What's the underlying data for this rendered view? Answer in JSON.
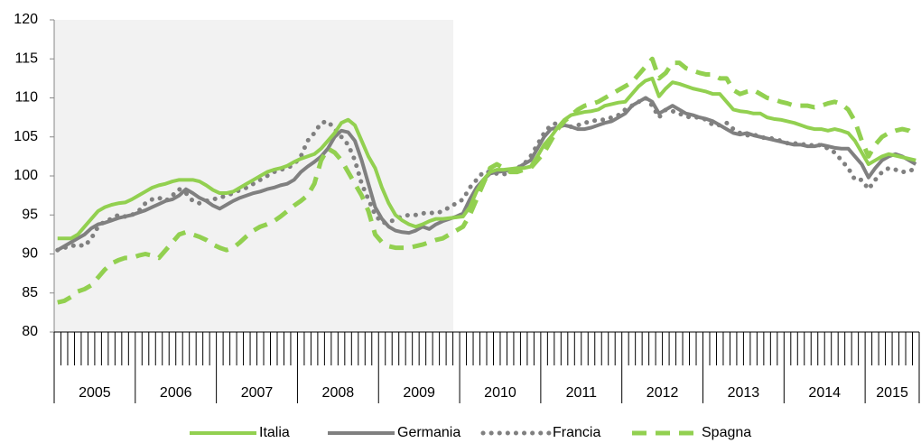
{
  "chart_data": {
    "type": "line",
    "categories": [
      "2005",
      null,
      null,
      null,
      null,
      null,
      null,
      null,
      null,
      null,
      null,
      null,
      "2006",
      null,
      null,
      null,
      null,
      null,
      null,
      null,
      null,
      null,
      null,
      null,
      "2007",
      null,
      null,
      null,
      null,
      null,
      null,
      null,
      null,
      null,
      null,
      null,
      "2008",
      null,
      null,
      null,
      null,
      null,
      null,
      null,
      null,
      null,
      null,
      null,
      "2009",
      null,
      null,
      null,
      null,
      null,
      null,
      null,
      null,
      null,
      null,
      null,
      "2010",
      null,
      null,
      null,
      null,
      null,
      null,
      null,
      null,
      null,
      null,
      null,
      "2011",
      null,
      null,
      null,
      null,
      null,
      null,
      null,
      null,
      null,
      null,
      null,
      "2012",
      null,
      null,
      null,
      null,
      null,
      null,
      null,
      null,
      null,
      null,
      null,
      "2013",
      null,
      null,
      null,
      null,
      null,
      null,
      null,
      null,
      null,
      null,
      null,
      "2014",
      null,
      null,
      null,
      null,
      null,
      null,
      null,
      null,
      null,
      null,
      null,
      "2015",
      null,
      null,
      null,
      null,
      null,
      null,
      null
    ],
    "series": [
      {
        "name": "Italia",
        "color": "#92d050",
        "style": "solid",
        "values": [
          92,
          92,
          92,
          92.5,
          93.5,
          94.5,
          95.5,
          96,
          96.3,
          96.5,
          96.6,
          97,
          97.5,
          98,
          98.5,
          98.8,
          99,
          99.3,
          99.5,
          99.5,
          99.5,
          99.3,
          98.8,
          98.2,
          97.8,
          97.8,
          98,
          98.5,
          99,
          99.5,
          100,
          100.5,
          100.8,
          101,
          101.3,
          101.8,
          102.2,
          102.5,
          102.8,
          103.5,
          104.5,
          105.5,
          106.8,
          107.2,
          106.5,
          104.5,
          102.5,
          101,
          98.5,
          96.5,
          95,
          94.3,
          93.8,
          93.5,
          93.8,
          94.2,
          94.5,
          94.5,
          94.6,
          94.7,
          94.8,
          96,
          98,
          99.5,
          100.5,
          100.8,
          100.8,
          100.9,
          101,
          101,
          101.2,
          102.5,
          104,
          105,
          106.2,
          107.2,
          107.8,
          108,
          108.2,
          108.3,
          108.5,
          109,
          109.2,
          109.4,
          109.5,
          110.5,
          111.5,
          112.2,
          112.5,
          110.2,
          111.2,
          112,
          111.8,
          111.5,
          111.2,
          111,
          110.8,
          110.5,
          110.5,
          109.5,
          108.5,
          108.3,
          108.2,
          108,
          108,
          107.5,
          107.3,
          107.2,
          107,
          106.8,
          106.5,
          106.2,
          106,
          106,
          105.8,
          106,
          105.8,
          105.5,
          104.5,
          103,
          101.5,
          102,
          102.5,
          102.8,
          102.6,
          102.4,
          102.2,
          102
        ]
      },
      {
        "name": "Germania",
        "color": "#808080",
        "style": "solid",
        "values": [
          90.5,
          91,
          91.5,
          92,
          92.5,
          93.3,
          93.8,
          94,
          94.3,
          94.6,
          94.8,
          95,
          95.3,
          95.6,
          96,
          96.4,
          96.8,
          97,
          97.5,
          98.3,
          97.8,
          97.2,
          96.8,
          96.2,
          95.8,
          96.3,
          96.8,
          97.2,
          97.5,
          97.8,
          98,
          98.3,
          98.5,
          98.8,
          99,
          99.5,
          100.5,
          101.2,
          101.8,
          102.5,
          103.5,
          105,
          105.8,
          105.6,
          104.5,
          102,
          99,
          96,
          94.5,
          93.5,
          93,
          92.8,
          92.7,
          93,
          93.5,
          93.2,
          93.8,
          94.2,
          94.5,
          94.8,
          95.2,
          97,
          98.5,
          99.5,
          100.3,
          100.5,
          100.6,
          100.8,
          101,
          101.5,
          102,
          103.5,
          105,
          106,
          106.2,
          106.5,
          106.3,
          106,
          106,
          106.2,
          106.5,
          106.8,
          107,
          107.5,
          108,
          109,
          109.5,
          110,
          109.5,
          108,
          108.5,
          109,
          108.5,
          108,
          107.8,
          107.5,
          107.3,
          107,
          106.5,
          106,
          105.5,
          105.3,
          105.5,
          105.2,
          105,
          104.8,
          104.6,
          104.4,
          104.2,
          104,
          104,
          103.8,
          103.8,
          104,
          103.8,
          103.6,
          103.5,
          103.5,
          102.5,
          101.5,
          99.8,
          101,
          102,
          102.5,
          102.8,
          102.5,
          102,
          101.5
        ]
      },
      {
        "name": "Francia",
        "color": "#808080",
        "style": "dotted",
        "values": [
          90.5,
          90.8,
          91,
          91.2,
          91,
          92,
          93.5,
          94.2,
          94.5,
          95,
          94.8,
          95,
          95.5,
          96.5,
          97,
          97.2,
          96.8,
          97.5,
          98.3,
          97.8,
          96.8,
          96.5,
          96.8,
          97,
          97.2,
          97.5,
          97.8,
          98.2,
          98.5,
          99,
          99.5,
          100,
          100.5,
          100.8,
          101,
          101.5,
          102.5,
          104.5,
          105.5,
          106.8,
          107,
          106,
          105,
          104,
          102,
          99,
          97,
          95,
          94,
          94,
          94.5,
          94.8,
          95,
          95,
          95.2,
          95.3,
          95.2,
          95.5,
          96,
          96.5,
          97,
          98.5,
          99.5,
          100.5,
          100.5,
          100.3,
          100.2,
          100.5,
          101,
          101.5,
          102.5,
          104,
          105.5,
          106.5,
          106.8,
          106.5,
          106.3,
          106.5,
          106.8,
          107,
          107.2,
          107.2,
          107.5,
          107.8,
          108.5,
          109,
          109.5,
          110,
          109,
          107.5,
          108.5,
          108.3,
          108,
          107.6,
          107.5,
          107.5,
          107.2,
          106.5,
          106.5,
          106.8,
          106,
          105.5,
          105.2,
          105.3,
          105,
          104.8,
          104.8,
          104.5,
          104.2,
          104.2,
          104,
          104.1,
          103.8,
          104,
          103.5,
          103,
          102,
          101,
          99.5,
          99.5,
          98.3,
          99.5,
          100.5,
          101,
          100.8,
          100.5,
          100.6,
          101
        ]
      },
      {
        "name": "Spagna",
        "color": "#92d050",
        "style": "dashed",
        "values": [
          83.8,
          84,
          84.5,
          85.2,
          85.5,
          86,
          87,
          88,
          88.8,
          89.2,
          89.5,
          89.5,
          89.8,
          90,
          89.8,
          89.5,
          90.5,
          91.5,
          92.5,
          92.8,
          92.5,
          92.2,
          91.8,
          91.2,
          90.8,
          90.5,
          90.8,
          91.5,
          92.3,
          93,
          93.5,
          93.8,
          94.2,
          94.8,
          95.5,
          96.2,
          96.8,
          97.5,
          99,
          102,
          103.5,
          103,
          102,
          100.5,
          99,
          97.5,
          95.5,
          92.5,
          91.5,
          91,
          90.8,
          90.8,
          90.8,
          91,
          91.2,
          91.5,
          91.8,
          92,
          92.5,
          93,
          93.5,
          95,
          97,
          99,
          101,
          101.5,
          101,
          100.5,
          100.5,
          100.8,
          101,
          102,
          103,
          104.5,
          106,
          107,
          107.8,
          108.5,
          109,
          109.2,
          109.5,
          110,
          110.5,
          111,
          111.5,
          112,
          113,
          114,
          115,
          112.5,
          113.2,
          114.5,
          114.5,
          113.8,
          113.5,
          113.2,
          113,
          113,
          112.5,
          112.5,
          111,
          110.5,
          110.8,
          111,
          110.5,
          110,
          109.8,
          109.5,
          109.3,
          109,
          109,
          109,
          108.8,
          109,
          109.3,
          109.5,
          109.2,
          108.5,
          107,
          104.5,
          102.5,
          104,
          105,
          105.5,
          105.8,
          106,
          105.8,
          105
        ]
      }
    ],
    "ylim": [
      80,
      120
    ],
    "yticks": [
      80,
      85,
      90,
      95,
      100,
      105,
      110,
      115,
      120
    ],
    "grid": false,
    "legend": "bottom"
  }
}
